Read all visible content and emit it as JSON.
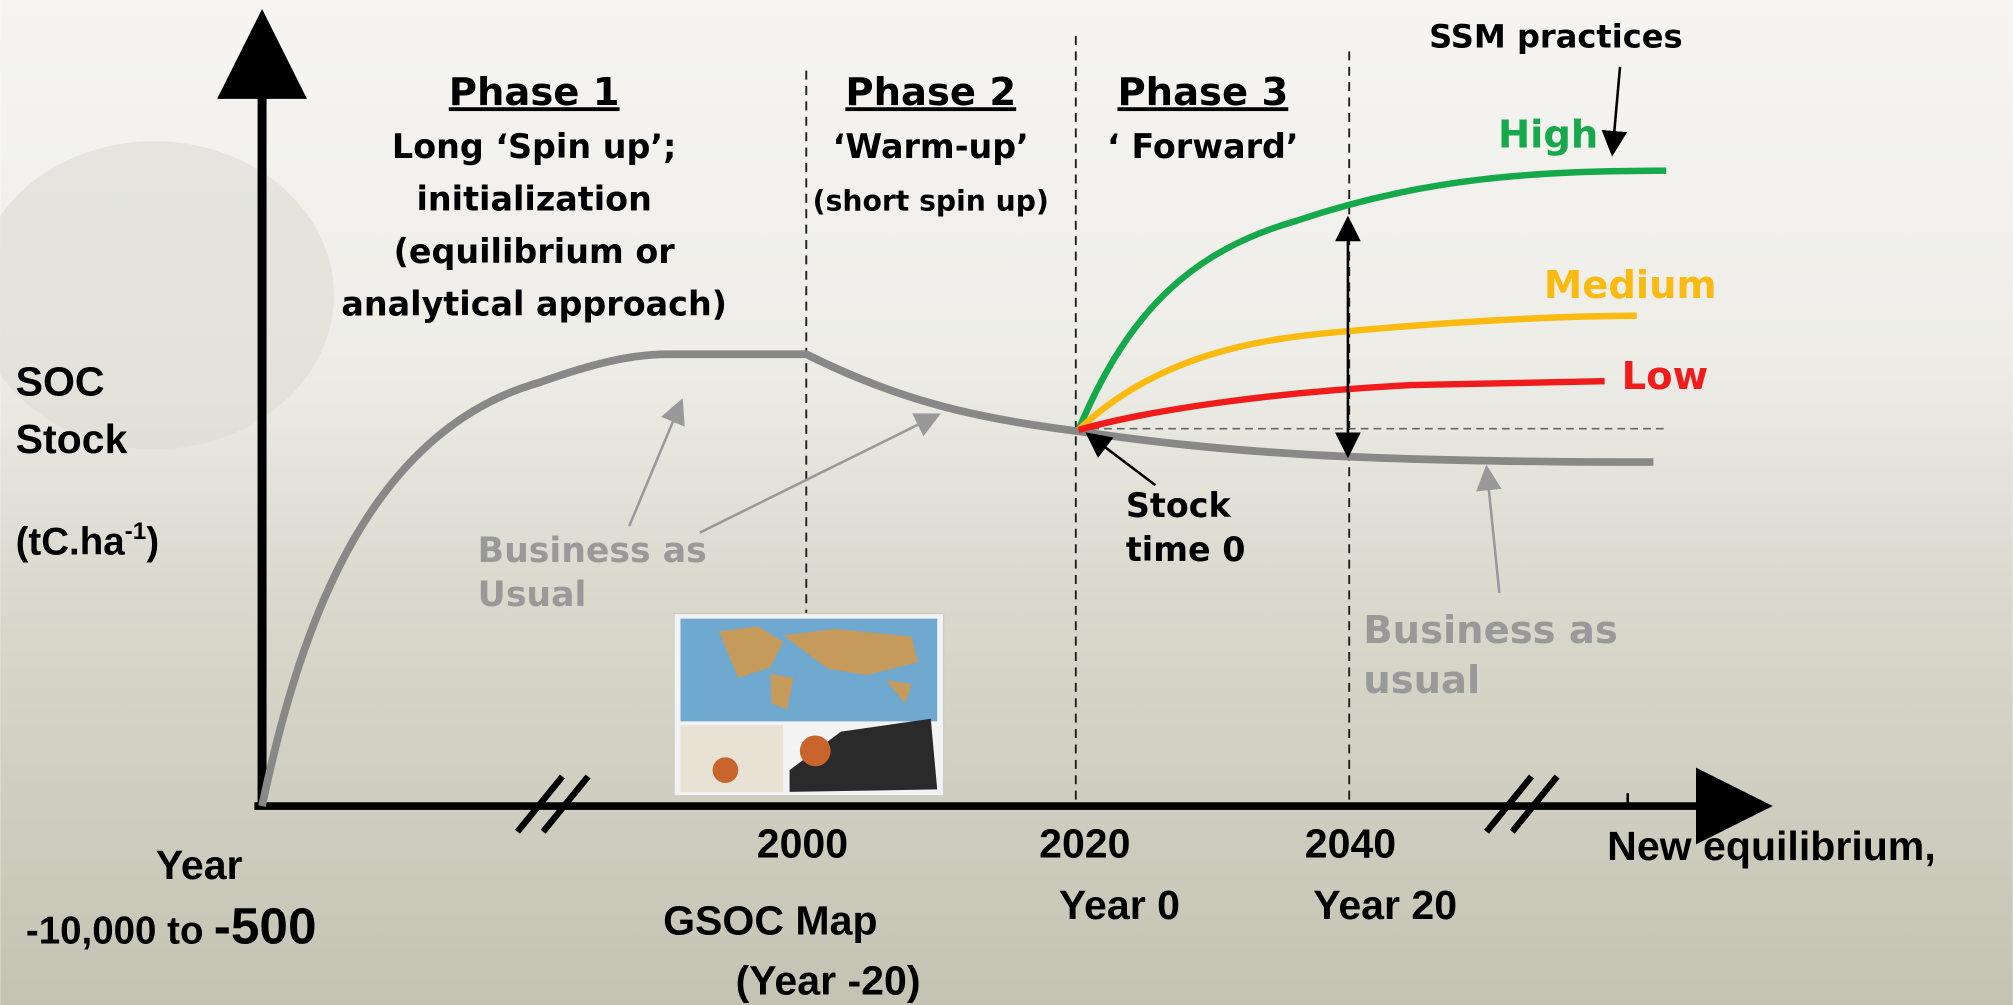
{
  "y_axis": {
    "lines": [
      "SOC",
      "Stock"
    ],
    "unit": {
      "base": "(tC.ha",
      "sup": "-1",
      "close": ")"
    }
  },
  "phases": [
    {
      "title": "Phase 1",
      "lines": [
        "Long ‘Spin  up’;",
        "initialization",
        "(equilibrium or",
        "analytical approach)"
      ]
    },
    {
      "title": "Phase 2",
      "lines": [
        "‘Warm-up’",
        "(short spin up)"
      ]
    },
    {
      "title": "Phase 3",
      "lines": [
        "‘ Forward’"
      ]
    }
  ],
  "ssm": {
    "title": "SSM practices",
    "high": "High",
    "medium": "Medium",
    "low": "Low"
  },
  "bau_left": [
    "Business as",
    "Usual"
  ],
  "bau_right": [
    "Business as",
    "usual"
  ],
  "stock_time0": [
    "Stock",
    "time 0"
  ],
  "x_axis": {
    "start": {
      "lines": [
        "Year",
        "-10,000 to"
      ],
      "value": "-500"
    },
    "ticks": [
      {
        "year": "2000",
        "lines": [
          "GSOC Map",
          "(Year -20)"
        ]
      },
      {
        "year": "2020",
        "lines": [
          "Year 0"
        ]
      },
      {
        "year": "2040",
        "lines": [
          "Year 20"
        ]
      }
    ],
    "end": "New equilibrium,"
  }
}
